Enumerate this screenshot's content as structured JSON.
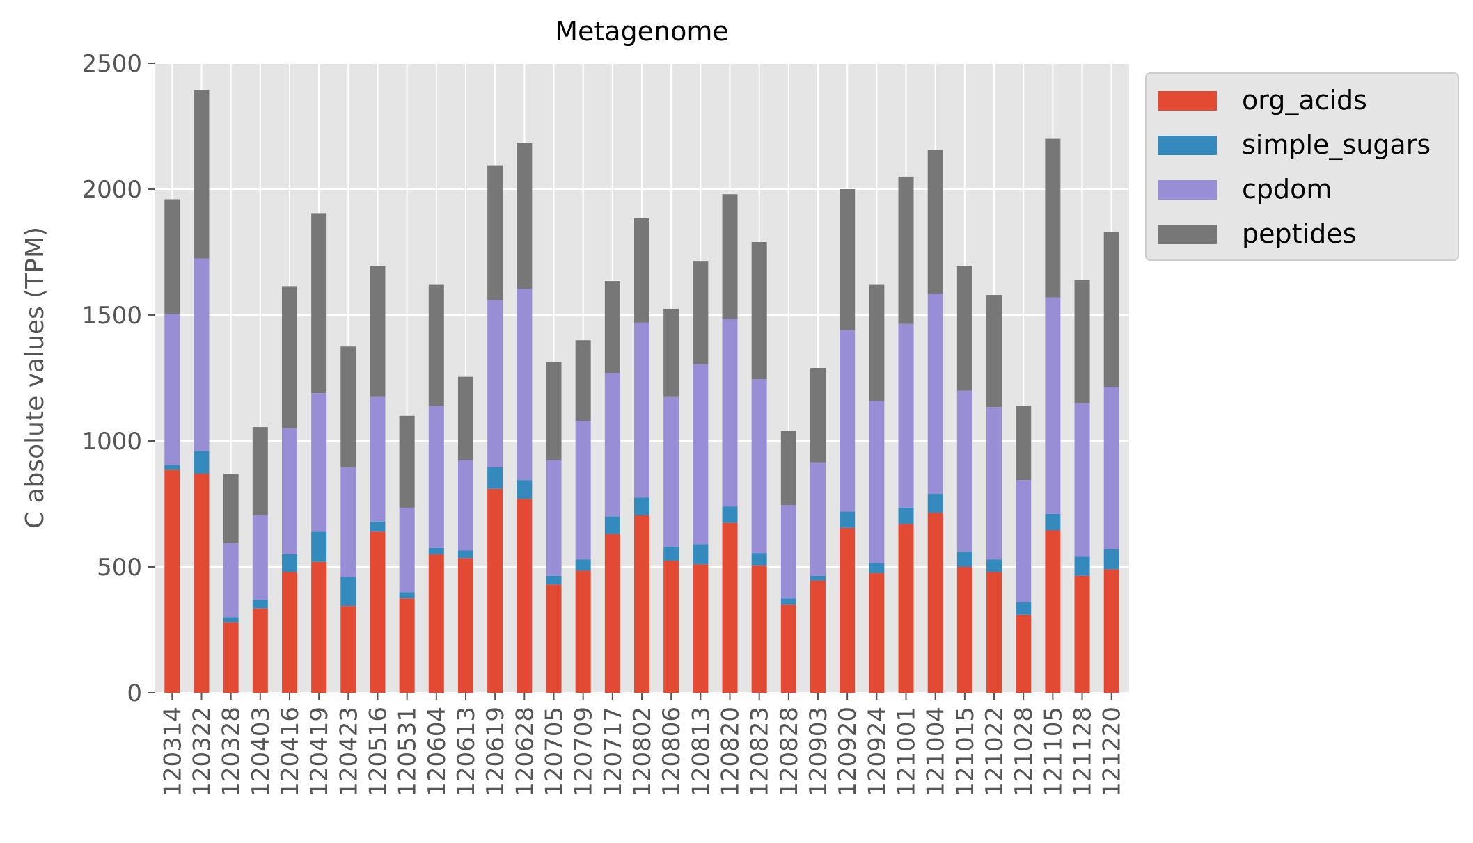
{
  "chart_data": {
    "type": "bar",
    "stacked": true,
    "title": "Metagenome",
    "xlabel": "",
    "ylabel": "C absolute values (TPM)",
    "ylim": [
      0,
      2500
    ],
    "yticks": [
      0,
      500,
      1000,
      1500,
      2000,
      2500
    ],
    "grid": true,
    "legend_position": "outside-top-right",
    "categories": [
      "120314",
      "120322",
      "120328",
      "120403",
      "120416",
      "120419",
      "120423",
      "120516",
      "120531",
      "120604",
      "120613",
      "120619",
      "120628",
      "120705",
      "120709",
      "120717",
      "120802",
      "120806",
      "120813",
      "120820",
      "120823",
      "120828",
      "120903",
      "120920",
      "120924",
      "121001",
      "121004",
      "121015",
      "121022",
      "121028",
      "121105",
      "121128",
      "121220"
    ],
    "series": [
      {
        "name": "org_acids",
        "color": "#E24A33",
        "values": [
          885,
          870,
          280,
          335,
          480,
          520,
          345,
          640,
          375,
          550,
          535,
          810,
          770,
          430,
          485,
          630,
          705,
          525,
          510,
          675,
          505,
          350,
          445,
          655,
          475,
          670,
          715,
          500,
          480,
          310,
          645,
          465,
          490
        ]
      },
      {
        "name": "simple_sugars",
        "color": "#348ABD",
        "values": [
          20,
          90,
          20,
          35,
          70,
          120,
          115,
          40,
          25,
          25,
          30,
          85,
          75,
          35,
          45,
          70,
          70,
          55,
          80,
          65,
          50,
          25,
          20,
          65,
          40,
          65,
          75,
          60,
          50,
          50,
          65,
          75,
          80
        ]
      },
      {
        "name": "cpdom",
        "color": "#988ED5",
        "values": [
          600,
          765,
          295,
          335,
          500,
          550,
          435,
          495,
          335,
          565,
          360,
          665,
          760,
          460,
          550,
          570,
          695,
          595,
          715,
          745,
          690,
          370,
          450,
          720,
          645,
          730,
          795,
          640,
          605,
          485,
          860,
          610,
          645
        ]
      },
      {
        "name": "peptides",
        "color": "#777777",
        "values": [
          455,
          670,
          275,
          350,
          565,
          715,
          480,
          520,
          365,
          480,
          330,
          535,
          580,
          390,
          320,
          365,
          415,
          350,
          410,
          495,
          545,
          295,
          375,
          560,
          460,
          585,
          570,
          495,
          445,
          295,
          630,
          490,
          615
        ]
      }
    ]
  }
}
